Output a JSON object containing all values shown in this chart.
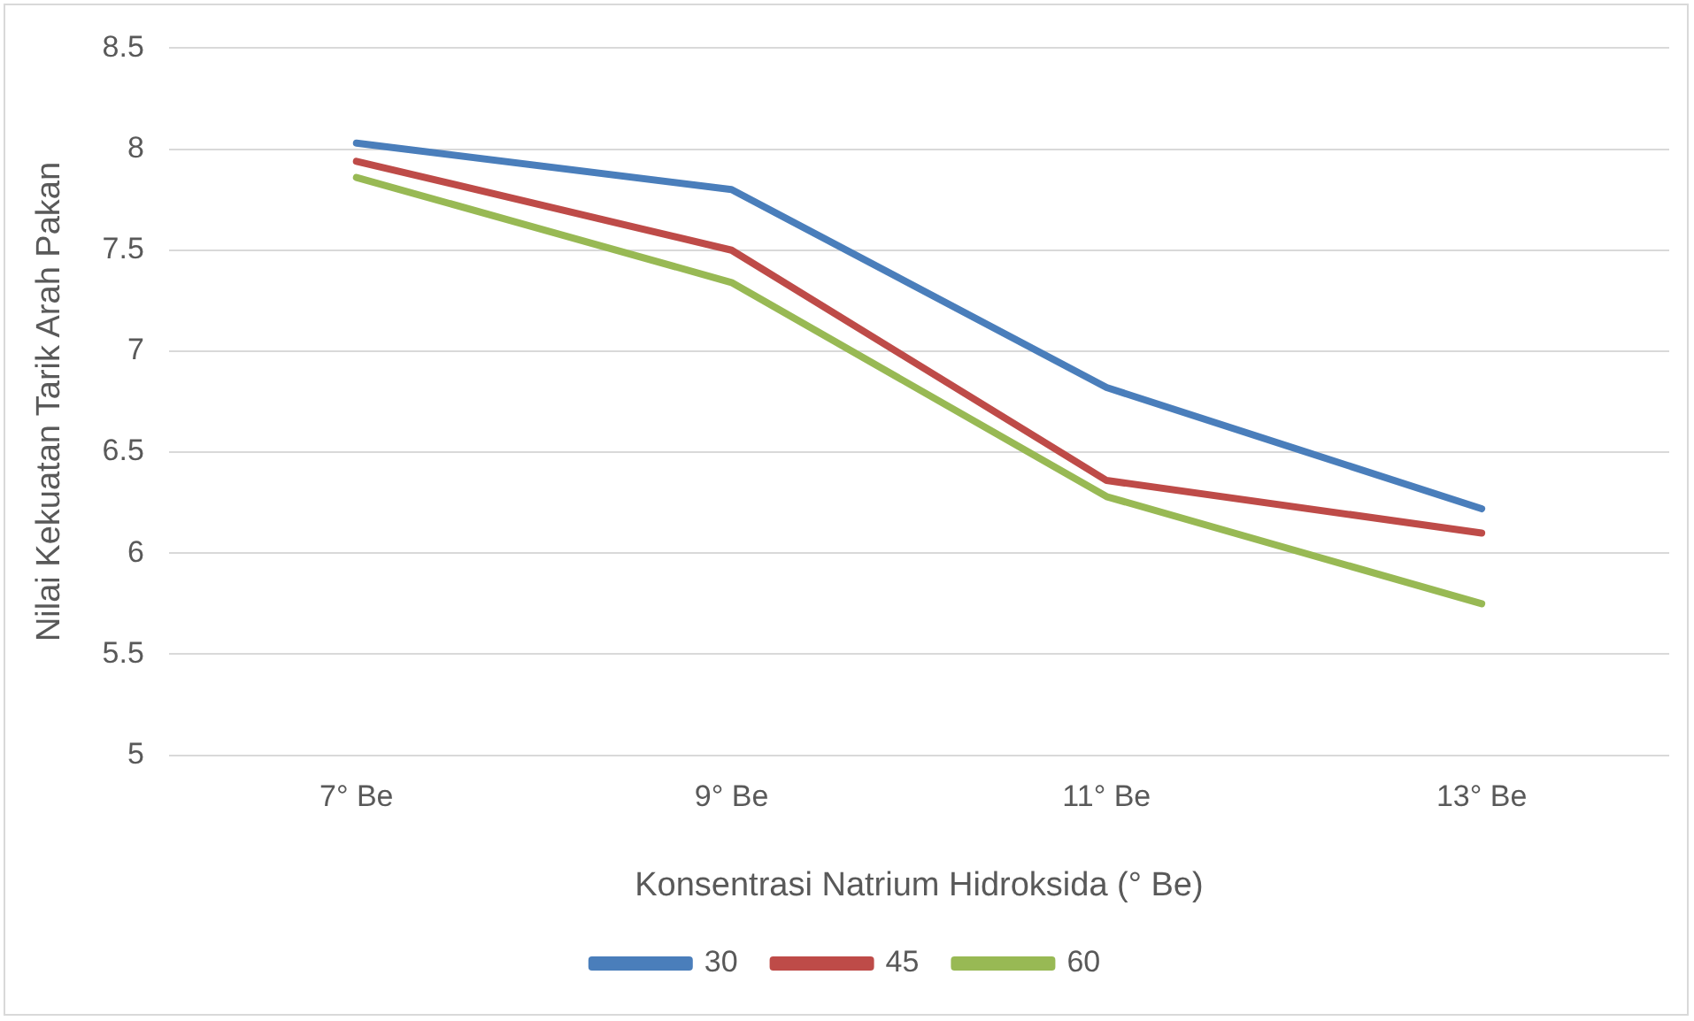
{
  "chart_data": {
    "type": "line",
    "xlabel": "Konsentrasi Natrium Hidroksida (° Be)",
    "ylabel": "Nilai Kekuatan Tarik Arah Pakan",
    "categories": [
      "7° Be",
      "9° Be",
      "11° Be",
      "13° Be"
    ],
    "series": [
      {
        "name": "30",
        "color": "#4a7ebb",
        "values": [
          8.03,
          7.8,
          6.82,
          6.22
        ]
      },
      {
        "name": "45",
        "color": "#be4b48",
        "values": [
          7.94,
          7.5,
          6.36,
          6.1
        ]
      },
      {
        "name": "60",
        "color": "#98b954",
        "values": [
          7.86,
          7.34,
          6.28,
          5.75
        ]
      }
    ],
    "ylim": [
      5,
      8.5
    ],
    "yticks": [
      5,
      5.5,
      6,
      6.5,
      7,
      7.5,
      8,
      8.5
    ],
    "grid": "y",
    "legend": "bottom",
    "marker": "none",
    "line_style": "solid"
  }
}
